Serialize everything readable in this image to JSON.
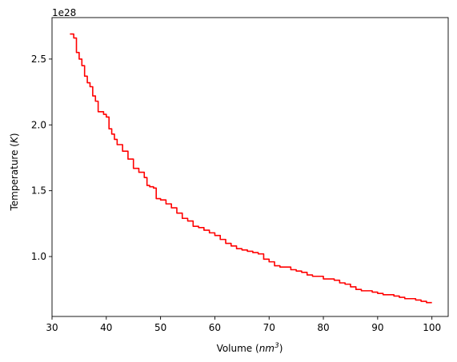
{
  "chart_data": {
    "type": "line",
    "xlabel": "Volume (nm³)",
    "xlabel_parts": {
      "prefix": "Volume (",
      "italic": "nm",
      "sup": "3",
      "suffix": ")"
    },
    "ylabel": "Temperature (K)",
    "ylabel_parts": {
      "prefix": "Temperature (",
      "italic": "K",
      "suffix": ")"
    },
    "offset_text": "1e28",
    "y_multiplier": 1e+28,
    "xlim": [
      30,
      103
    ],
    "ylim": [
      0.545,
      2.815
    ],
    "xticks": [
      30,
      40,
      50,
      60,
      70,
      80,
      90,
      100
    ],
    "yticks": [
      1.0,
      1.5,
      2.0,
      2.5
    ],
    "ytick_labels": [
      "1.0",
      "1.5",
      "2.0",
      "2.5"
    ],
    "grid": false,
    "series": [
      {
        "color": "#ff0000",
        "x": [
          33.3,
          34.0,
          34.5,
          35.0,
          35.5,
          36.0,
          36.5,
          37.0,
          37.5,
          38.0,
          38.5,
          39.0,
          39.5,
          40.0,
          40.5,
          41.0,
          41.5,
          42.0,
          43.0,
          44.0,
          45.0,
          46.0,
          47.0,
          47.5,
          48.0,
          48.7,
          49.2,
          50.0,
          51.0,
          52.0,
          53.0,
          54.0,
          55.0,
          56.0,
          57.0,
          58.0,
          59.0,
          60.0,
          61.0,
          62.0,
          63.0,
          64.0,
          65.0,
          66.0,
          67.0,
          68.0,
          69.0,
          70.0,
          71.0,
          72.0,
          73.0,
          74.0,
          75.0,
          76.0,
          77.0,
          78.0,
          79.0,
          80.0,
          81.0,
          82.0,
          83.0,
          84.0,
          85.0,
          86.0,
          87.0,
          88.0,
          89.0,
          90.0,
          91.0,
          92.0,
          93.0,
          94.0,
          95.0,
          96.0,
          97.0,
          98.0,
          99.0,
          100.0
        ],
        "y": [
          2.69,
          2.66,
          2.55,
          2.5,
          2.45,
          2.37,
          2.32,
          2.29,
          2.22,
          2.18,
          2.1,
          2.1,
          2.08,
          2.06,
          1.97,
          1.93,
          1.89,
          1.85,
          1.8,
          1.74,
          1.67,
          1.64,
          1.6,
          1.54,
          1.53,
          1.52,
          1.44,
          1.43,
          1.4,
          1.37,
          1.33,
          1.29,
          1.27,
          1.23,
          1.22,
          1.2,
          1.18,
          1.16,
          1.13,
          1.1,
          1.08,
          1.06,
          1.05,
          1.04,
          1.03,
          1.02,
          0.98,
          0.96,
          0.93,
          0.92,
          0.92,
          0.9,
          0.89,
          0.88,
          0.86,
          0.85,
          0.85,
          0.83,
          0.83,
          0.82,
          0.8,
          0.79,
          0.77,
          0.75,
          0.74,
          0.74,
          0.73,
          0.72,
          0.71,
          0.71,
          0.7,
          0.69,
          0.68,
          0.68,
          0.67,
          0.66,
          0.65,
          0.65
        ]
      }
    ]
  }
}
